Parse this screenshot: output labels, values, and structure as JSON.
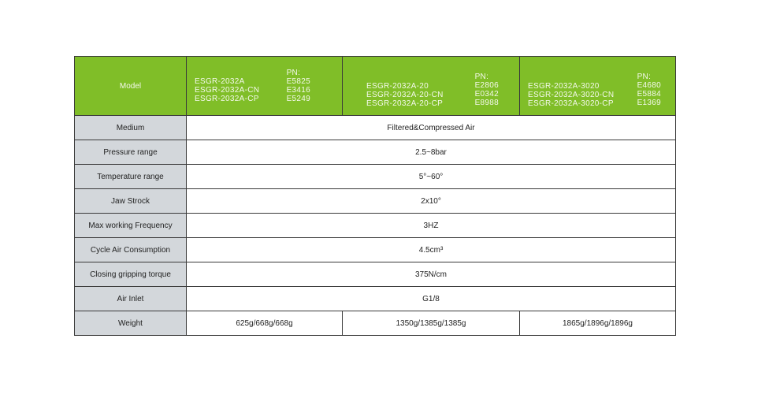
{
  "header": {
    "label": "Model",
    "models": [
      {
        "names": [
          "ESGR-2032A",
          "ESGR-2032A-CN",
          "ESGR-2032A-CP"
        ],
        "pn_label": "PN:",
        "pns": [
          "E5825",
          "E3416",
          "E5249"
        ]
      },
      {
        "names": [
          "ESGR-2032A-20",
          "ESGR-2032A-20-CN",
          "ESGR-2032A-20-CP"
        ],
        "pn_label": "PN:",
        "pns": [
          "E2806",
          "E0342",
          "E8988"
        ]
      },
      {
        "names": [
          "ESGR-2032A-3020",
          "ESGR-2032A-3020-CN",
          "ESGR-2032A-3020-CP"
        ],
        "pn_label": "PN:",
        "pns": [
          "E4680",
          "E5884",
          "E1369"
        ]
      }
    ]
  },
  "rows": [
    {
      "label": "Medium",
      "value": "Filtered&Compressed Air"
    },
    {
      "label": "Pressure range",
      "value": "2.5~8bar"
    },
    {
      "label": "Temperature range",
      "value": "5°~60°"
    },
    {
      "label": "Jaw Strock",
      "value": "2x10°"
    },
    {
      "label": "Max working Frequency",
      "value": "3HZ"
    },
    {
      "label": "Cycle Air Consumption",
      "value": "4.5cm³"
    },
    {
      "label": "Closing gripping torque",
      "value": "375N/cm"
    },
    {
      "label": "Air Inlet",
      "value": "G1/8"
    }
  ],
  "weight": {
    "label": "Weight",
    "values": [
      "625g/668g/668g",
      "1350g/1385g/1385g",
      "1865g/1896g/1896g"
    ]
  },
  "colors": {
    "header_green": "#80be28",
    "label_gray": "#d3d7db"
  }
}
